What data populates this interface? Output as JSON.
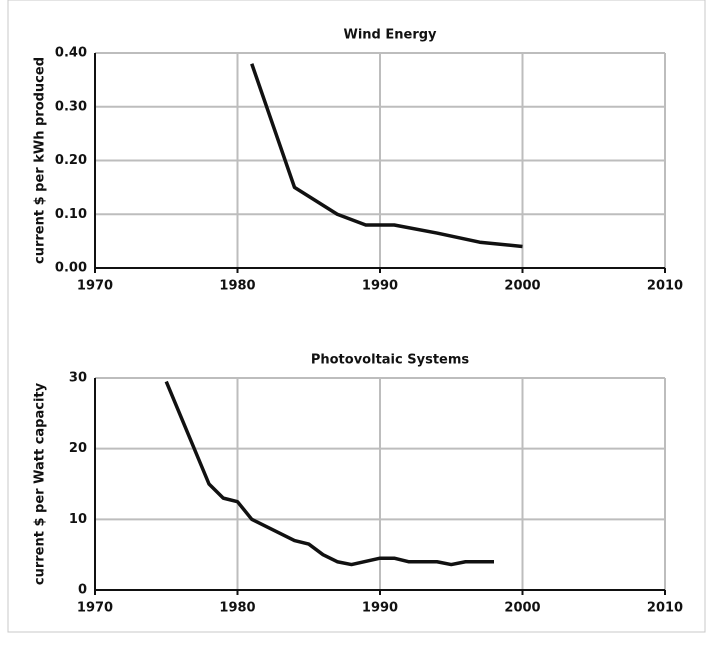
{
  "chart_data": [
    {
      "type": "line",
      "title": "Wind Energy",
      "y_label": "current $ per kWh produced",
      "x": [
        1981,
        1984,
        1987,
        1989,
        1991,
        1994,
        1997,
        2000
      ],
      "series": [
        {
          "color": "#111111",
          "values": [
            0.38,
            0.15,
            0.1,
            0.08,
            0.08,
            0.065,
            0.048,
            0.04
          ]
        }
      ],
      "xlim": [
        1970,
        2010
      ],
      "xticks": [
        1970,
        1980,
        1990,
        2000,
        2010
      ],
      "ylim": [
        0,
        0.4
      ],
      "yticks": [
        {
          "value": 0,
          "label": "0.00"
        },
        {
          "value": 0.1,
          "label": "0.10"
        },
        {
          "value": 0.2,
          "label": "0.20"
        },
        {
          "value": 0.3,
          "label": "0.30"
        },
        {
          "value": 0.4,
          "label": "0.40"
        }
      ],
      "grid": true
    },
    {
      "type": "line",
      "title": "Photovoltaic Systems",
      "y_label": "current $ per Watt capacity",
      "x": [
        1975,
        1978,
        1979,
        1980,
        1981,
        1984,
        1985,
        1986,
        1987,
        1988,
        1990,
        1991,
        1992,
        1994,
        1995,
        1996,
        1998
      ],
      "series": [
        {
          "color": "#111111",
          "values": [
            29.5,
            15,
            13,
            12.5,
            10,
            7,
            6.5,
            5,
            4,
            3.6,
            4.5,
            4.5,
            4,
            4,
            3.6,
            4,
            4
          ]
        }
      ],
      "xlim": [
        1970,
        2010
      ],
      "xticks": [
        1970,
        1980,
        1990,
        2000,
        2010
      ],
      "ylim": [
        0,
        30
      ],
      "yticks": [
        0,
        10,
        20,
        30
      ],
      "grid": true
    }
  ]
}
